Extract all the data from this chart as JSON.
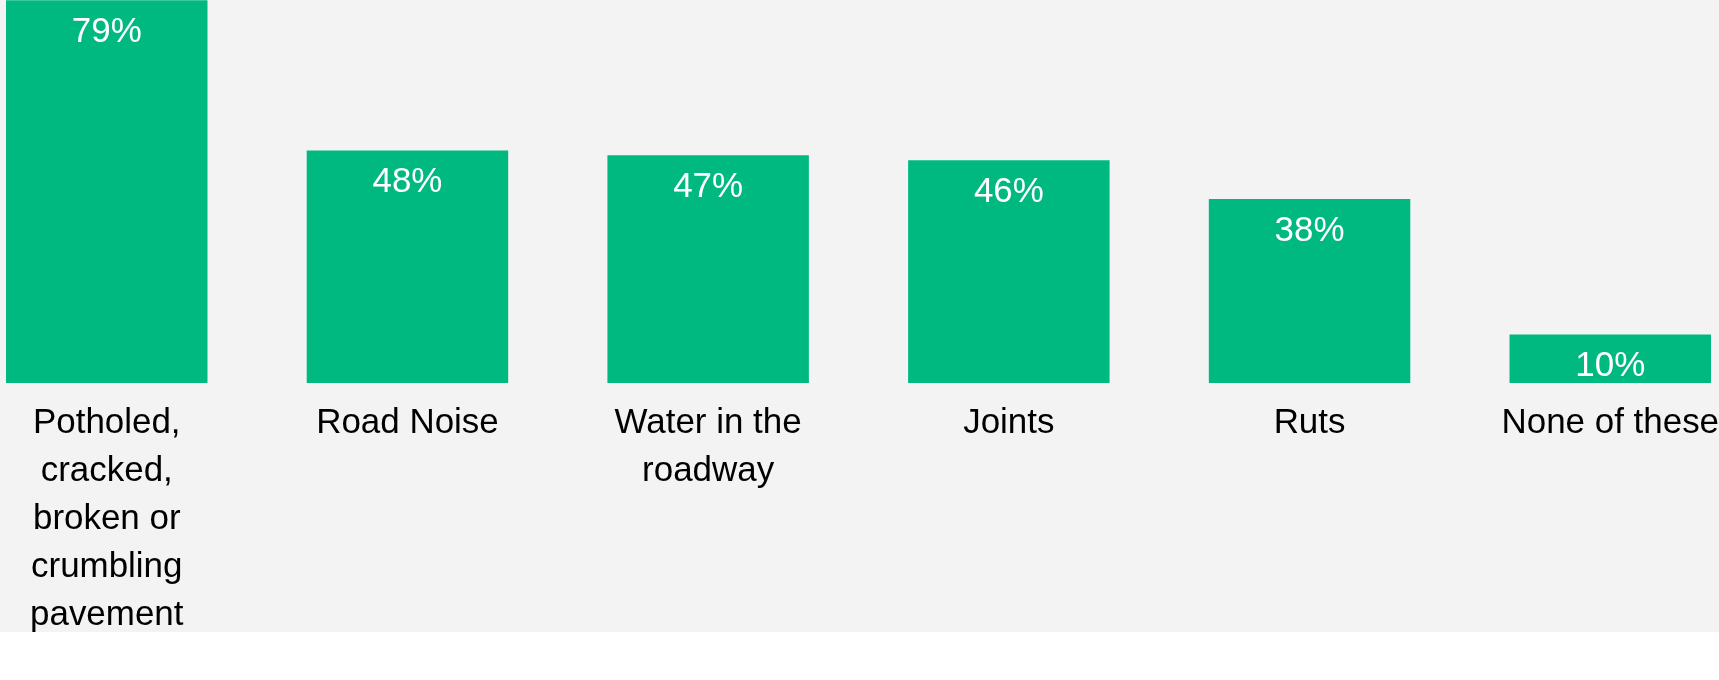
{
  "chart_data": {
    "type": "bar",
    "categories": [
      "Potholed, cracked, broken or crumbling pavement",
      "Road Noise",
      "Water in the roadway",
      "Joints",
      "Ruts",
      "None of these"
    ],
    "values": [
      79,
      48,
      47,
      46,
      38,
      10
    ],
    "color": "#00b980",
    "data_labels": true,
    "value_labels": [
      "79%",
      "48%",
      "47%",
      "46%",
      "38%",
      "10%"
    ]
  }
}
